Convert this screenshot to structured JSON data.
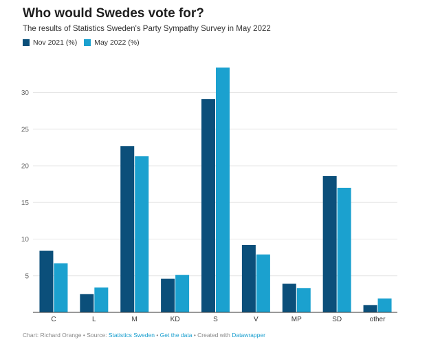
{
  "title": "Who would Swedes vote for?",
  "subtitle": "The results of Statistics Sweden's Party Sympathy Survey in May 2022",
  "footer": {
    "credit": "Chart: Richard Orange • Source: ",
    "source_link": "Statistics Sweden",
    "sep1": " • ",
    "data_link": "Get the data",
    "created": " • Created with ",
    "dw_link": "Datawrapper"
  },
  "colors": {
    "nov": "#0b4f7a",
    "may": "#1ba1cf",
    "grid": "#e6e6e6",
    "axis": "#333333"
  },
  "chart_data": {
    "type": "bar",
    "categories": [
      "C",
      "L",
      "M",
      "KD",
      "S",
      "V",
      "MP",
      "SD",
      "other"
    ],
    "series": [
      {
        "name": "Nov 2021 (%)",
        "values": [
          8.4,
          2.5,
          22.7,
          4.6,
          29.1,
          9.2,
          3.9,
          18.6,
          1.0
        ]
      },
      {
        "name": "May 2022 (%)",
        "values": [
          6.7,
          3.4,
          21.3,
          5.1,
          33.4,
          7.9,
          3.3,
          17.0,
          1.9
        ]
      }
    ],
    "yticks": [
      5,
      10,
      15,
      20,
      25,
      30
    ],
    "ylim": [
      0,
      34
    ],
    "grid": true,
    "legend": "top-left"
  }
}
